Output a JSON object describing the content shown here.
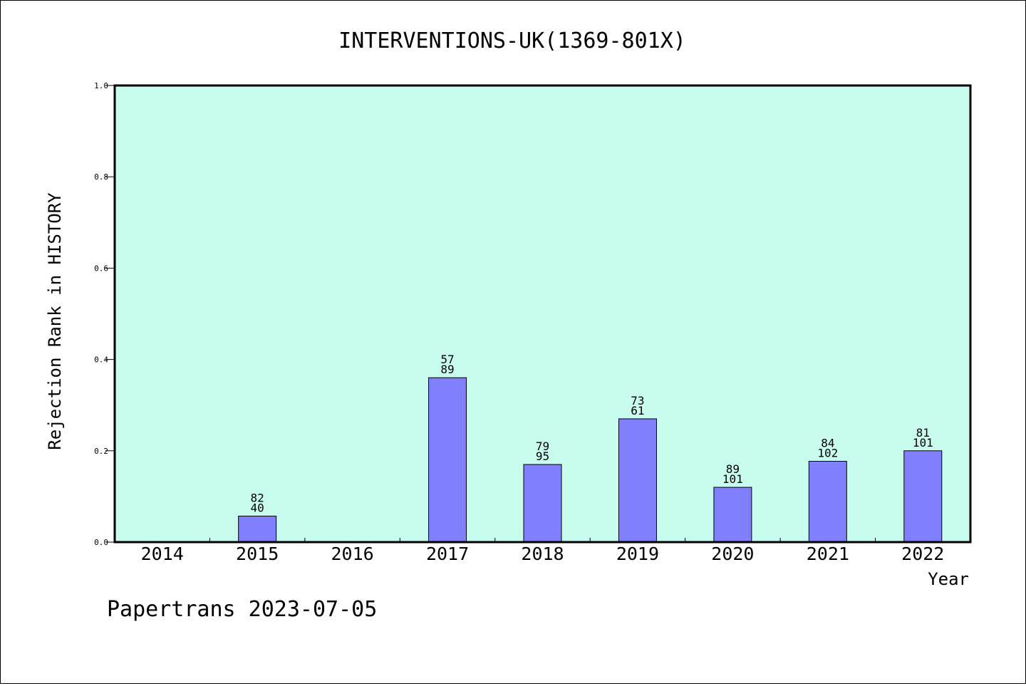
{
  "chart_data": {
    "type": "bar",
    "title": "INTERVENTIONS-UK(1369-801X)",
    "xlabel": "Year",
    "ylabel": "Rejection Rank in HISTORY",
    "ylim": [
      0,
      1.0
    ],
    "yticks": [
      "0.0",
      "0.2",
      "0.4",
      "0.6",
      "0.8",
      "1.0"
    ],
    "categories": [
      "2014",
      "2015",
      "2016",
      "2017",
      "2018",
      "2019",
      "2020",
      "2021",
      "2022"
    ],
    "values": [
      0,
      0.057,
      0,
      0.36,
      0.17,
      0.27,
      0.12,
      0.177,
      0.2
    ],
    "labels_top": [
      "",
      "82",
      "",
      "57",
      "79",
      "73",
      "89",
      "84",
      "81"
    ],
    "labels_bottom": [
      "",
      "40",
      "",
      "89",
      "95",
      "61",
      "101",
      "102",
      "101"
    ],
    "grid": false,
    "colors": {
      "plot_background": "#c8fcee",
      "bar_fill": "#8080ff",
      "bar_stroke": "#000000"
    }
  },
  "footer": "Papertrans 2023-07-05"
}
